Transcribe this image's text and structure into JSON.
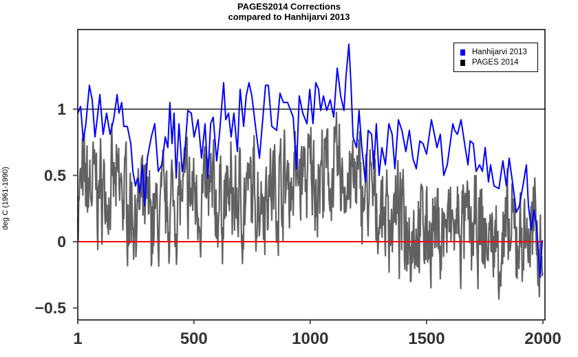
{
  "chart_data": {
    "type": "line",
    "title": "PAGES2014 Corrections\ncompared to Hanhijarvi 2013",
    "title_lines": [
      "PAGES2014 Corrections",
      "compared to Hanhijarvi 2013"
    ],
    "xlabel": "",
    "ylabel": "deg C (1961-1990)",
    "xlim": [
      1,
      2000
    ],
    "ylim": [
      -0.6,
      1.6
    ],
    "x_ticks": [
      1,
      500,
      1000,
      1500,
      2000
    ],
    "x_tick_labels": [
      "1",
      "500",
      "1000",
      "1500",
      "2000"
    ],
    "y_ticks": [
      -0.5,
      0,
      0.5,
      1
    ],
    "y_tick_labels": [
      "−0.5",
      "0",
      "0.5",
      "1"
    ],
    "reference_lines": [
      {
        "value": 0,
        "color": "#ff0000"
      },
      {
        "value": 1,
        "color": "#555555"
      }
    ],
    "legend": {
      "position": "top-right",
      "entries": [
        "Hanhijarvi 2013",
        "PAGES 2014"
      ]
    },
    "series": [
      {
        "name": "Hanhijarvi 2013",
        "color": "#0000ff",
        "x": [
          1,
          13,
          25,
          36,
          51,
          63,
          75,
          84,
          96,
          104,
          110,
          125,
          140,
          155,
          170,
          178,
          190,
          199,
          214,
          229,
          238,
          249,
          258,
          267,
          279,
          288,
          300,
          317,
          332,
          347,
          362,
          377,
          388,
          397,
          406,
          415,
          424,
          436,
          450,
          459,
          474,
          489,
          501,
          518,
          533,
          548,
          560,
          572,
          583,
          598,
          610,
          628,
          637,
          649,
          660,
          672,
          687,
          699,
          714,
          725,
          737,
          749,
          767,
          782,
          796,
          808,
          820,
          835,
          856,
          870,
          885,
          903,
          927,
          941,
          953,
          968,
          986,
          998,
          1012,
          1024,
          1036,
          1045,
          1057,
          1071,
          1086,
          1101,
          1116,
          1131,
          1145,
          1154,
          1166,
          1175,
          1184,
          1199,
          1210,
          1222,
          1237,
          1249,
          1264,
          1273,
          1284,
          1296,
          1308,
          1323,
          1338,
          1352,
          1364,
          1379,
          1394,
          1411,
          1426,
          1441,
          1456,
          1471,
          1485,
          1500,
          1521,
          1536,
          1545,
          1559,
          1574,
          1589,
          1613,
          1621,
          1633,
          1648,
          1666,
          1678,
          1687,
          1701,
          1713,
          1728,
          1740,
          1752,
          1766,
          1775,
          1790,
          1811,
          1828,
          1843,
          1855,
          1867,
          1879,
          1885,
          1899,
          1917,
          1929,
          1938,
          1950,
          1962,
          1973,
          1988,
          1997
        ],
        "y": [
          0.97,
          1.02,
          0.76,
          0.89,
          1.18,
          1.07,
          0.79,
          0.92,
          1.11,
          0.94,
          0.81,
          0.97,
          0.81,
          0.92,
          1.11,
          0.97,
          1.05,
          0.87,
          0.87,
          0.74,
          0.53,
          0.42,
          0.48,
          0.37,
          0.58,
          0.27,
          0.63,
          0.79,
          0.89,
          0.53,
          0.58,
          0.79,
          0.71,
          1.05,
          0.74,
          0.97,
          0.48,
          0.89,
          0.53,
          0.63,
          0.99,
          0.97,
          0.79,
          0.92,
          0.63,
          0.89,
          0.48,
          0.89,
          0.94,
          0.61,
          0.81,
          1.2,
          0.92,
          0.97,
          0.79,
          0.97,
          0.68,
          1.15,
          0.87,
          1.1,
          1.2,
          1.1,
          0.84,
          0.63,
          0.92,
          1.18,
          1.18,
          0.87,
          0.84,
          1.12,
          1.05,
          1.05,
          0.94,
          0.55,
          1.1,
          0.97,
          0.89,
          1.15,
          0.89,
          1.2,
          1.15,
          0.99,
          1.1,
          0.99,
          1.07,
          0.94,
          1.31,
          1.1,
          0.99,
          1.25,
          1.49,
          1.2,
          0.79,
          0.71,
          0.99,
          0.71,
          0.45,
          0.84,
          0.81,
          0.55,
          0.89,
          0.5,
          0.71,
          0.58,
          0.89,
          0.81,
          0.55,
          0.92,
          0.84,
          0.68,
          0.84,
          0.63,
          0.55,
          0.76,
          0.74,
          0.66,
          0.92,
          0.79,
          0.71,
          0.81,
          0.5,
          0.58,
          0.89,
          0.84,
          0.81,
          0.92,
          0.71,
          0.58,
          0.76,
          0.74,
          0.53,
          0.58,
          0.53,
          0.71,
          0.45,
          0.58,
          0.42,
          0.4,
          0.61,
          0.42,
          0.63,
          0.48,
          0.32,
          0.22,
          0.27,
          0.45,
          0.58,
          0.27,
          0.09,
          0.24,
          0.11,
          -0.27,
          0.01
        ]
      },
      {
        "name": "PAGES 2014",
        "color": "#000000",
        "x": [
          1,
          50,
          100,
          150,
          200,
          250,
          300,
          350,
          400,
          450,
          500,
          550,
          600,
          650,
          700,
          750,
          800,
          850,
          900,
          950,
          1000,
          1050,
          1100,
          1150,
          1200,
          1250,
          1300,
          1350,
          1400,
          1450,
          1500,
          1550,
          1600,
          1650,
          1700,
          1750,
          1800,
          1850,
          1900,
          1950,
          2000
        ],
        "y": [
          0.35,
          0.4,
          0.4,
          0.38,
          0.35,
          0.25,
          0.18,
          0.15,
          0.28,
          0.32,
          0.35,
          0.33,
          0.3,
          0.32,
          0.3,
          0.35,
          0.4,
          0.42,
          0.45,
          0.48,
          0.5,
          0.5,
          0.5,
          0.48,
          0.42,
          0.33,
          0.25,
          0.2,
          0.15,
          0.12,
          0.1,
          0.08,
          0.1,
          0.1,
          0.05,
          0.02,
          0.0,
          -0.02,
          0.05,
          0.05,
          0.0
        ]
      }
    ]
  }
}
